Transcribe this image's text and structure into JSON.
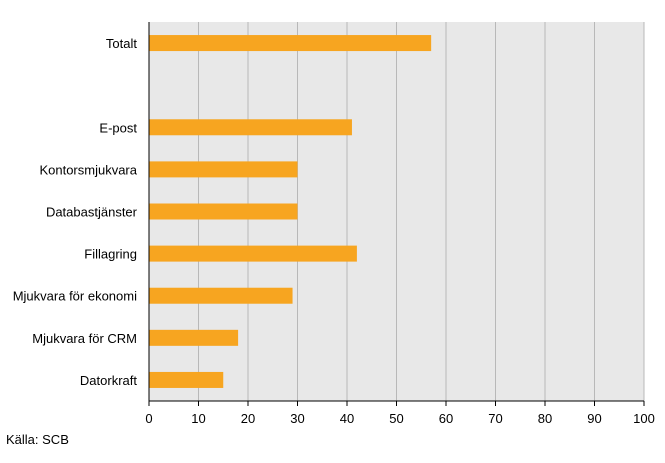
{
  "source": "Källa: SCB",
  "colors": {
    "bar": "#F7A520",
    "plot_background": "#E8E8E8",
    "gridline": "#B8B8B8",
    "axis": "#000000"
  },
  "chart_data": {
    "type": "bar",
    "orientation": "horizontal",
    "categories": [
      "Totalt",
      "",
      "E-post",
      "Kontorsmjukvara",
      "Databastjänster",
      "Fillagring",
      "Mjukvara för ekonomi",
      "Mjukvara för CRM",
      "Datorkraft"
    ],
    "values": [
      57,
      null,
      41,
      30,
      30,
      42,
      29,
      18,
      15
    ],
    "xlim": [
      0,
      100
    ],
    "xticks": [
      0,
      10,
      20,
      30,
      40,
      50,
      60,
      70,
      80,
      90,
      100
    ],
    "grid": true,
    "title": "",
    "xlabel": "",
    "ylabel": ""
  }
}
